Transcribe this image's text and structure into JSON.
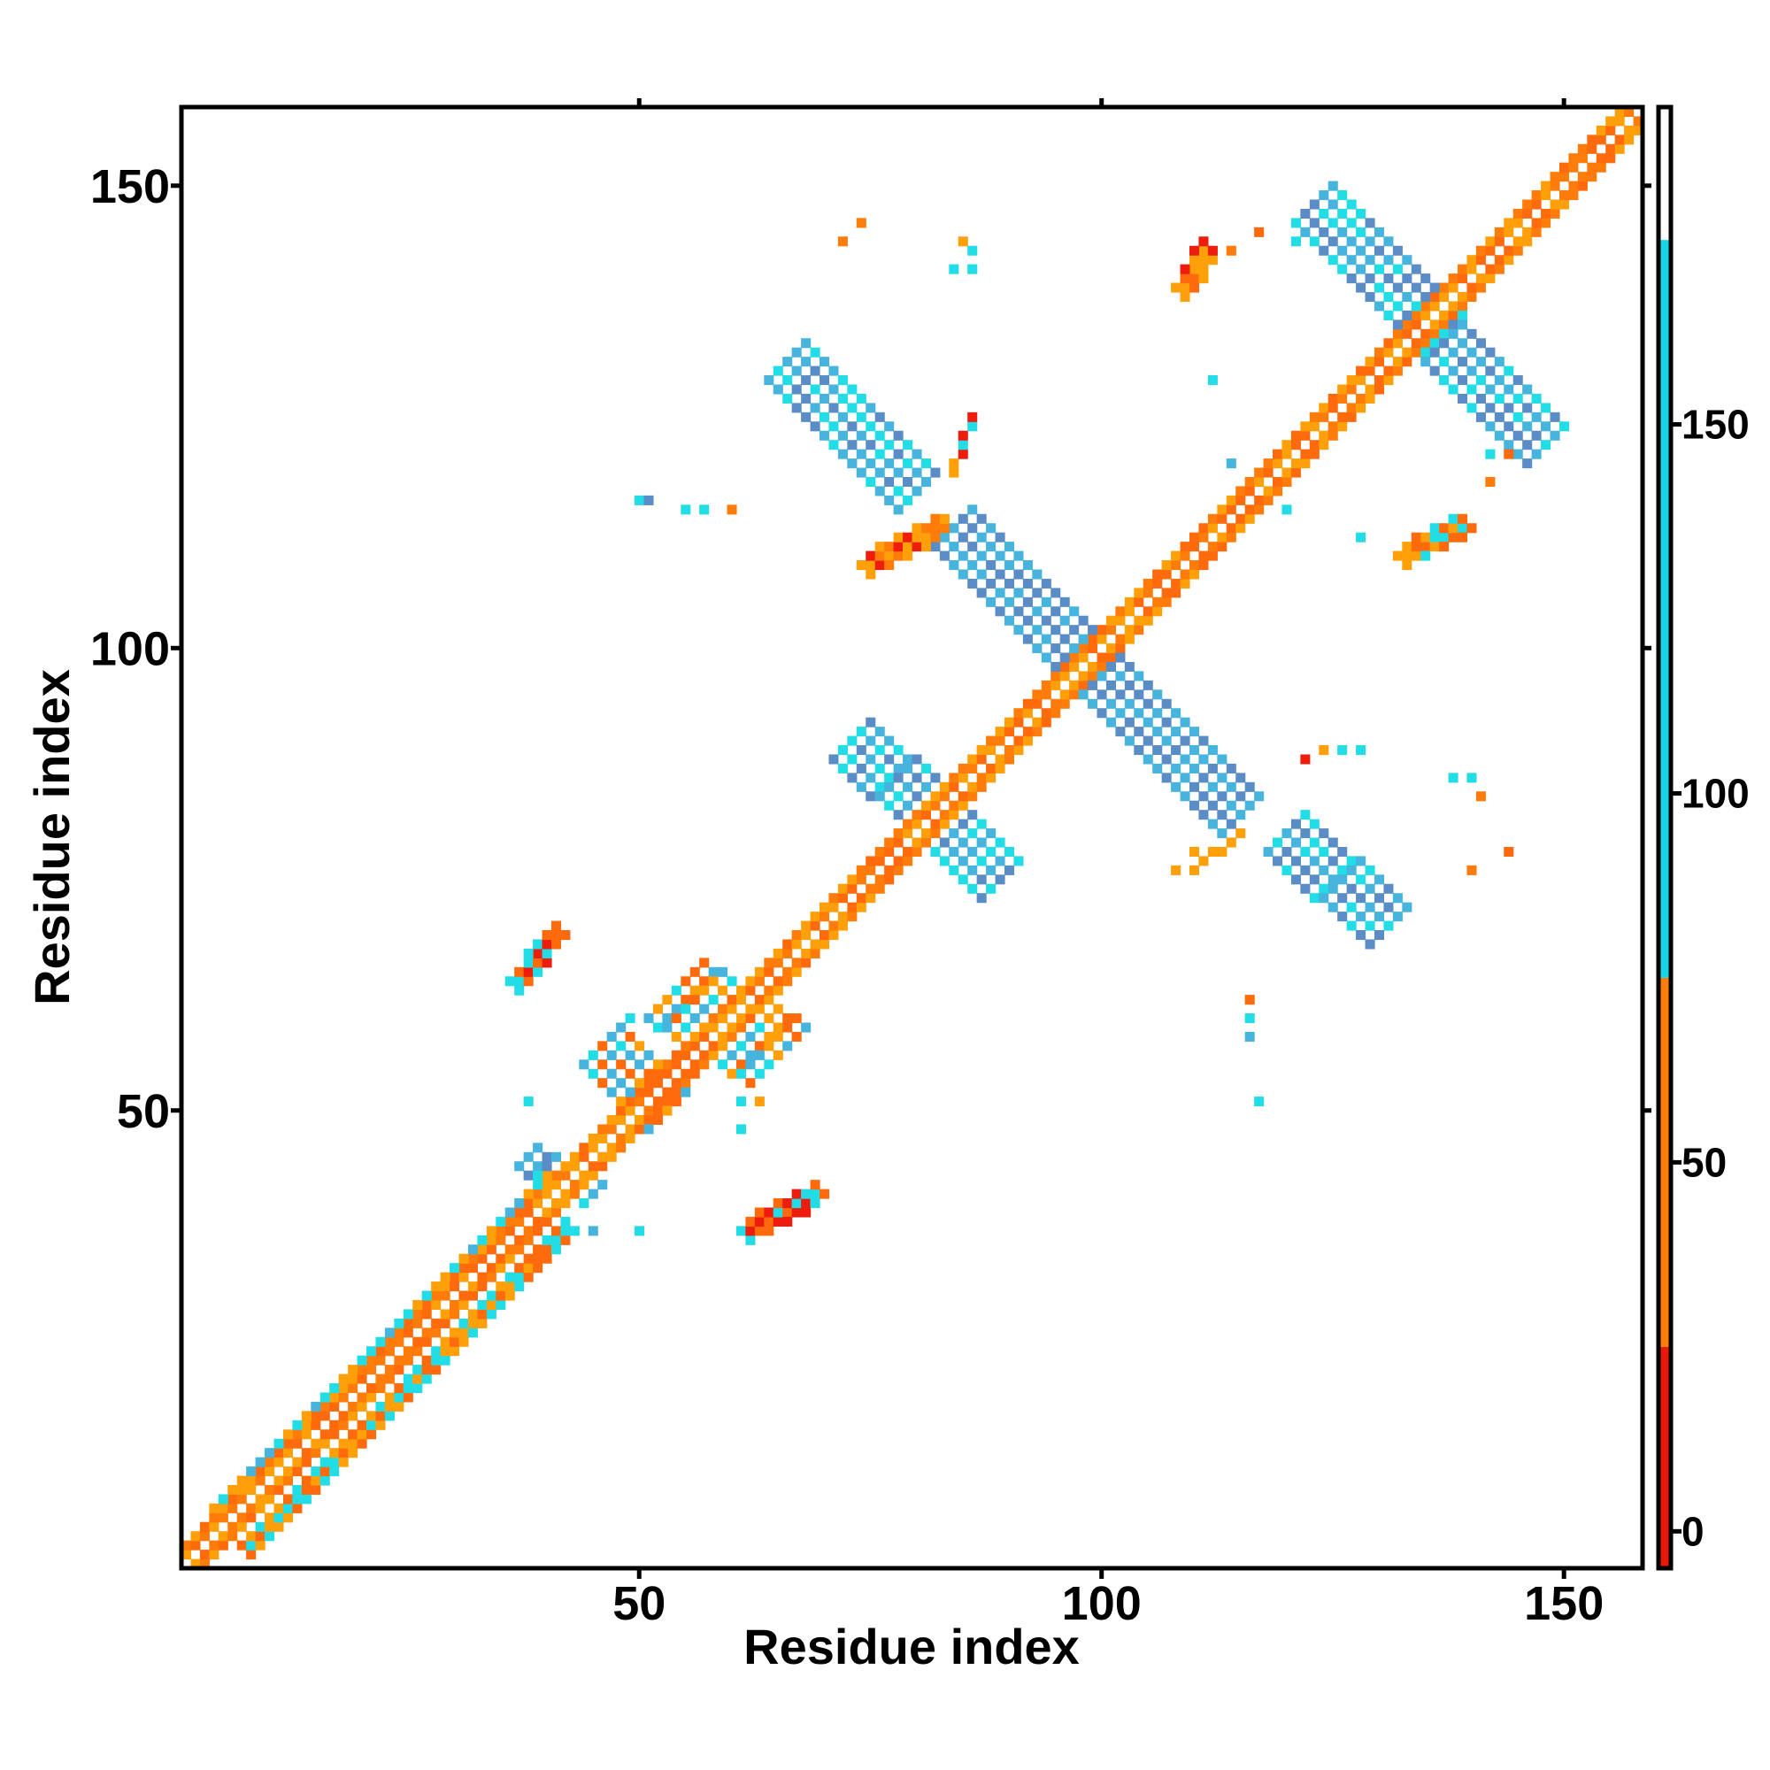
{
  "chart_data": {
    "type": "heatmap",
    "title": "",
    "xlabel": "Residue index",
    "ylabel": "Residue index",
    "xlim": [
      0.5,
      158.5
    ],
    "ylim": [
      0.5,
      158.5
    ],
    "x_ticks": [
      50,
      100,
      150
    ],
    "y_ticks": [
      50,
      100,
      150
    ],
    "grid": false,
    "colorbar": {
      "range": [
        -5,
        193
      ],
      "ticks": [
        0,
        50,
        100,
        150
      ],
      "bands": [
        {
          "from": -5,
          "to": 25,
          "color": "#e8180a"
        },
        {
          "from": 25,
          "to": 75,
          "color": "#ff7b0a"
        },
        {
          "from": 75,
          "to": 175,
          "color": "#19d6e6"
        },
        {
          "from": 175,
          "to": 193,
          "color": "#ffffff"
        }
      ]
    },
    "palette": {
      "red": "#ee1c0c",
      "orange_red": "#ff6a0c",
      "orange": "#ffa00a",
      "cyan": "#22dde6",
      "teal": "#46b4dc",
      "steel": "#5a8cc6"
    },
    "segments": [
      {
        "x": [
          1,
          158
        ],
        "y": [
          1,
          158
        ],
        "width": 3,
        "colors": [
          "#ff7b0a",
          "#ff6a0c",
          "#ffa00a"
        ],
        "seed": 1
      },
      {
        "x": [
          5,
          40
        ],
        "y": [
          7,
          42
        ],
        "width": 2,
        "colors": [
          "#22dde6",
          "#ffa00a",
          "#46b4dc"
        ],
        "seed": 2
      },
      {
        "x": [
          8,
          42
        ],
        "y": [
          3,
          37
        ],
        "width": 2,
        "colors": [
          "#ff6a0c",
          "#ffa00a",
          "#22dde6"
        ],
        "seed": 3
      },
      {
        "x": [
          35,
          100
        ],
        "y": [
          35,
          100
        ],
        "width": 2,
        "colors": [
          "#ee1c0c",
          "#ff6a0c",
          "#ff7b0a"
        ],
        "seed": 4
      },
      {
        "x": [
          100,
          158
        ],
        "y": [
          100,
          158
        ],
        "width": 2,
        "colors": [
          "#ee1c0c",
          "#ff6a0c",
          "#ffa00a"
        ],
        "seed": 5
      },
      {
        "x": [
          123,
          137
        ],
        "y": [
          148,
          134
        ],
        "width": 3,
        "colors": [
          "#5a8cc6",
          "#46b4dc",
          "#22dde6"
        ],
        "seed": 6
      },
      {
        "x": [
          137,
          148
        ],
        "y": [
          133,
          122
        ],
        "width": 3,
        "colors": [
          "#5a8cc6",
          "#46b4dc",
          "#22dde6"
        ],
        "seed": 7
      },
      {
        "x": [
          66,
          80
        ],
        "y": [
          131,
          117
        ],
        "width": 3,
        "colors": [
          "#5a8cc6",
          "#46b4dc",
          "#22dde6"
        ],
        "seed": 8
      },
      {
        "x": [
          84,
          97
        ],
        "y": [
          113,
          100
        ],
        "width": 3,
        "colors": [
          "#5a8cc6",
          "#46b4dc"
        ],
        "seed": 9
      },
      {
        "x": [
          99,
          115
        ],
        "y": [
          98,
          82
        ],
        "width": 3,
        "colors": [
          "#5a8cc6",
          "#46b4dc"
        ],
        "seed": 10
      },
      {
        "x": [
          73,
          82
        ],
        "y": [
          90,
          82
        ],
        "width": 3,
        "colors": [
          "#22dde6",
          "#46b4dc",
          "#5a8cc6"
        ],
        "seed": 11
      },
      {
        "x": [
          83,
          89
        ],
        "y": [
          81,
          75
        ],
        "width": 3,
        "colors": [
          "#5a8cc6",
          "#46b4dc",
          "#22dde6"
        ],
        "seed": 12
      },
      {
        "x": [
          120,
          131
        ],
        "y": [
          80,
          70
        ],
        "width": 3,
        "colors": [
          "#5a8cc6",
          "#46b4dc",
          "#22dde6"
        ],
        "seed": 13
      },
      {
        "x": [
          54,
          65
        ],
        "y": [
          63,
          56
        ],
        "width": 4,
        "colors": [
          "#22dde6",
          "#46b4dc",
          "#ffa00a",
          "#ff6a0c"
        ],
        "seed": 14
      },
      {
        "x": [
          46,
          53
        ],
        "y": [
          57,
          50
        ],
        "width": 3,
        "colors": [
          "#46b4dc",
          "#22dde6",
          "#ffa00a",
          "#ff6a0c"
        ],
        "seed": 15
      },
      {
        "x": [
          38,
          45
        ],
        "y": [
          45,
          41
        ],
        "width": 2,
        "colors": [
          "#46b4dc",
          "#22dde6",
          "#5a8cc6"
        ],
        "seed": 16
      },
      {
        "x": [
          62,
          69
        ],
        "y": [
          37,
          41
        ],
        "width": 2,
        "colors": [
          "#ee1c0c",
          "#ff6a0c",
          "#22dde6"
        ],
        "seed": 17
      },
      {
        "x": [
          37,
          41
        ],
        "y": [
          64,
          69
        ],
        "width": 2,
        "colors": [
          "#ee1c0c",
          "#ff6a0c",
          "#22dde6"
        ],
        "seed": 18
      },
      {
        "x": [
          75,
          83
        ],
        "y": [
          109,
          113
        ],
        "width": 2,
        "colors": [
          "#ff7b0a",
          "#ffa00a",
          "#ee1c0c"
        ],
        "seed": 19
      },
      {
        "x": [
          84,
          86
        ],
        "y": [
          119,
          125
        ],
        "width": 1,
        "colors": [
          "#ee1c0c",
          "#ffa00a",
          "#22dde6"
        ],
        "seed": 20
      },
      {
        "x": [
          133,
          139
        ],
        "y": [
          110,
          113
        ],
        "width": 2,
        "colors": [
          "#ffa00a",
          "#ff6a0c",
          "#22dde6"
        ],
        "seed": 21
      },
      {
        "x": [
          109,
          111
        ],
        "y": [
          139,
          143
        ],
        "width": 2,
        "colors": [
          "#ffa00a",
          "#ff6a0c",
          "#ee1c0c"
        ],
        "seed": 22
      },
      {
        "x": [
          110,
          115
        ],
        "y": [
          76,
          80
        ],
        "width": 1,
        "colors": [
          "#ff7b0a",
          "#ffa00a"
        ],
        "seed": 23
      }
    ],
    "scatter_cells": [
      [
        72,
        144,
        "#ff7b0a"
      ],
      [
        74,
        146,
        "#ff7b0a"
      ],
      [
        85,
        144,
        "#ffa00a"
      ],
      [
        86,
        143,
        "#22dde6"
      ],
      [
        86,
        141,
        "#22dde6"
      ],
      [
        84,
        141,
        "#22dde6"
      ],
      [
        112,
        143,
        "#ffa00a"
      ],
      [
        114,
        143,
        "#ff7b0a"
      ],
      [
        117,
        145,
        "#ff6a0c"
      ],
      [
        121,
        146,
        "#ee1c0c"
      ],
      [
        121,
        144,
        "#22dde6"
      ],
      [
        112,
        129,
        "#22dde6"
      ],
      [
        50,
        116,
        "#22dde6"
      ],
      [
        51,
        116,
        "#5a8cc6"
      ],
      [
        55,
        115,
        "#22dde6"
      ],
      [
        57,
        115,
        "#22dde6"
      ],
      [
        60,
        115,
        "#ff7b0a"
      ],
      [
        114,
        120,
        "#46b4dc"
      ],
      [
        120,
        115,
        "#22dde6"
      ],
      [
        128,
        112,
        "#22dde6"
      ],
      [
        142,
        121,
        "#22dde6"
      ],
      [
        144,
        121,
        "#ff6a0c"
      ],
      [
        142,
        118,
        "#ff7b0a"
      ],
      [
        122,
        88,
        "#ee1c0c"
      ],
      [
        124,
        89,
        "#ffa00a"
      ],
      [
        126,
        89,
        "#22dde6"
      ],
      [
        128,
        89,
        "#22dde6"
      ],
      [
        138,
        86,
        "#22dde6"
      ],
      [
        140,
        86,
        "#22dde6"
      ],
      [
        141,
        84,
        "#ff7b0a"
      ],
      [
        140,
        76,
        "#ff7b0a"
      ],
      [
        144,
        78,
        "#ff6a0c"
      ],
      [
        116,
        62,
        "#ff6a0c"
      ],
      [
        116,
        60,
        "#22dde6"
      ],
      [
        116,
        58,
        "#46b4dc"
      ],
      [
        117,
        51,
        "#22dde6"
      ],
      [
        38,
        51,
        "#22dde6"
      ],
      [
        49,
        60,
        "#22dde6"
      ],
      [
        51,
        60,
        "#22dde6"
      ],
      [
        52,
        61,
        "#ff7b0a"
      ],
      [
        61,
        51,
        "#22dde6"
      ],
      [
        63,
        51,
        "#ffa00a"
      ],
      [
        61,
        48,
        "#22dde6"
      ],
      [
        50,
        37,
        "#22dde6"
      ],
      [
        45,
        37,
        "#46b4dc"
      ],
      [
        112,
        83,
        "#ff6a0c"
      ],
      [
        108,
        76,
        "#ffa00a"
      ],
      [
        110,
        78,
        "#ffa00a"
      ]
    ]
  }
}
